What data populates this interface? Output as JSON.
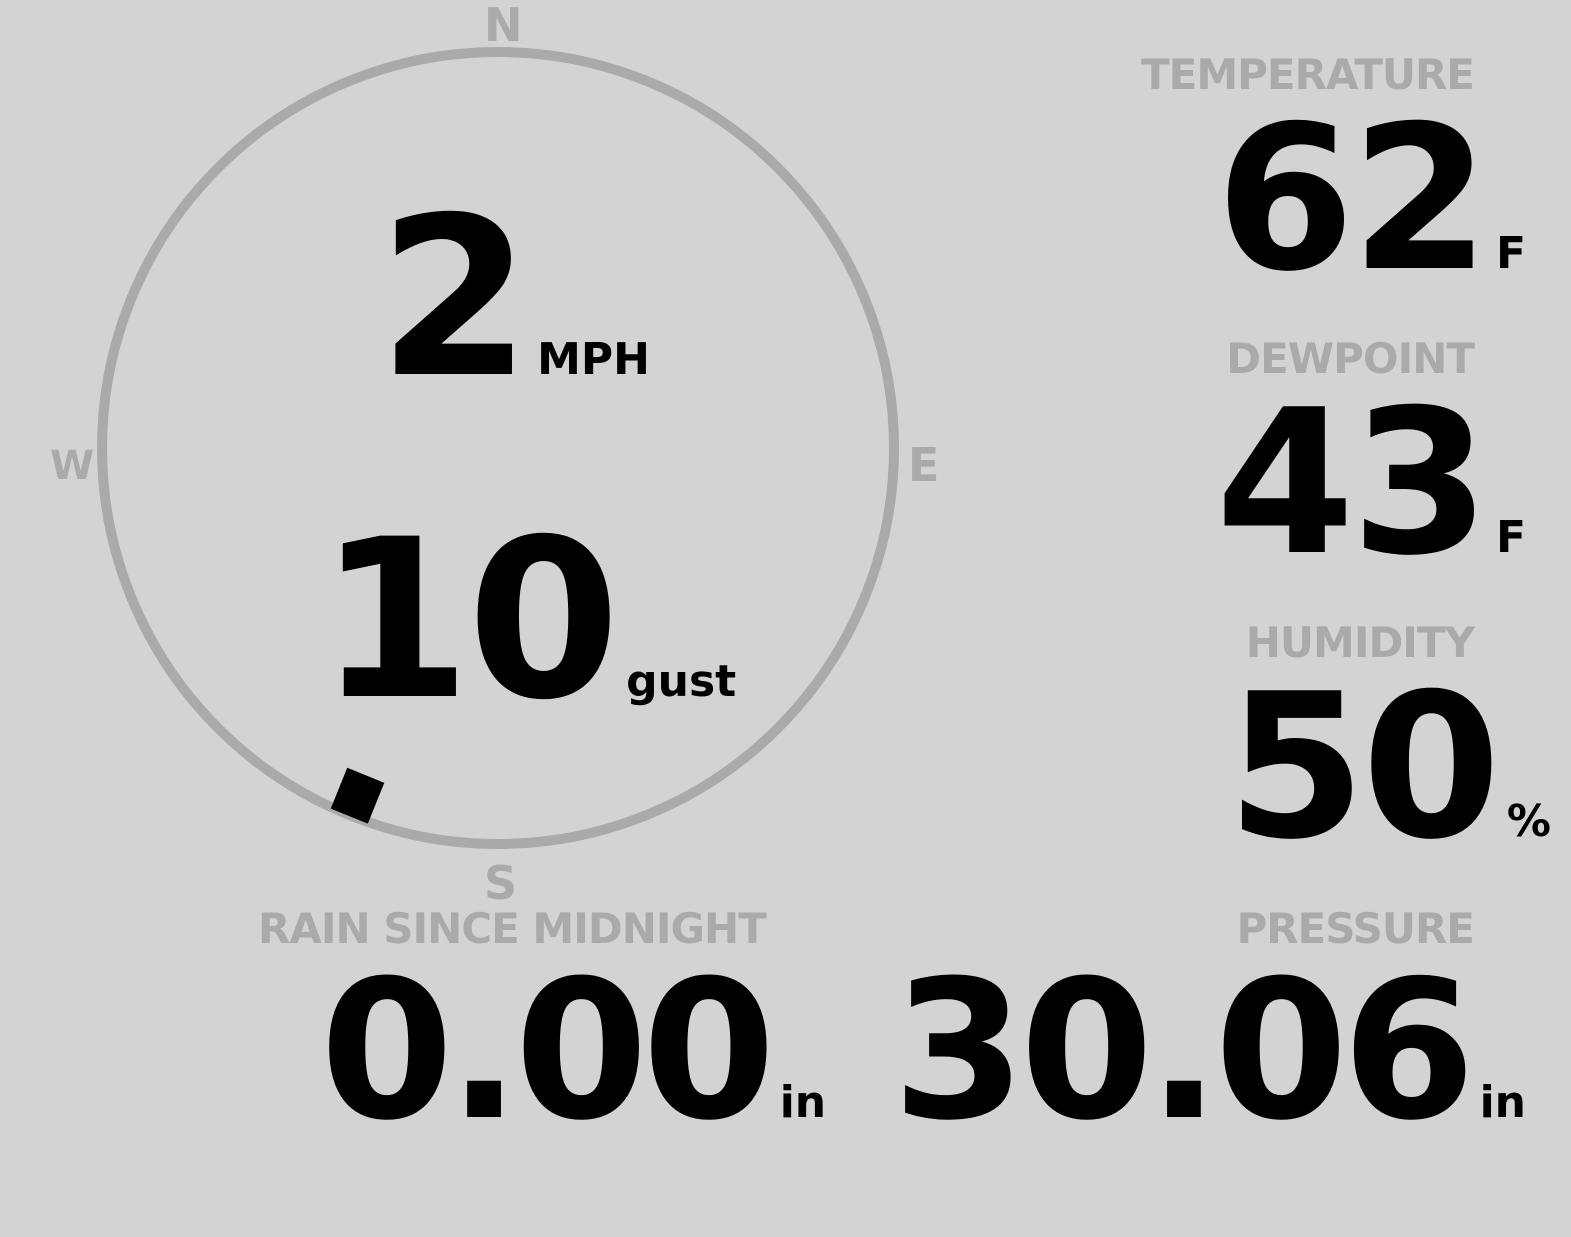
{
  "colors": {
    "background": "#d3d3d3",
    "muted": "#aaaaaa",
    "value": "#000000"
  },
  "compass": {
    "north": "N",
    "east": "E",
    "south": "S",
    "west": "W"
  },
  "wind": {
    "speed": "2",
    "speed_unit": "MPH",
    "gust": "10",
    "gust_unit": "gust",
    "direction_deg": 202
  },
  "temperature": {
    "label": "TEMPERATURE",
    "value": "62",
    "unit": "F"
  },
  "dewpoint": {
    "label": "DEWPOINT",
    "value": "43",
    "unit": "F"
  },
  "humidity": {
    "label": "HUMIDITY",
    "value": "50",
    "unit": "%"
  },
  "rain": {
    "label": "RAIN SINCE MIDNIGHT",
    "value": "0.00",
    "unit": "in"
  },
  "pressure": {
    "label": "PRESSURE",
    "value": "30.06",
    "unit": "in"
  }
}
